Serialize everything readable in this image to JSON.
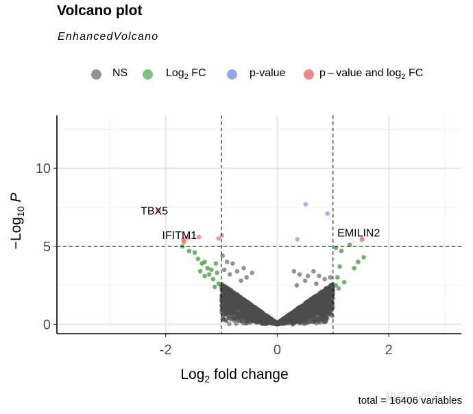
{
  "title": "Volcano plot",
  "subtitle": "EnhancedVolcano",
  "caption": "total = 16406 variables",
  "watermark": "知乎 @叶子",
  "legend": [
    {
      "key": "NS",
      "label": "NS",
      "color": "#808080"
    },
    {
      "key": "FC",
      "label_main": "Log",
      "label_sub": "2",
      "label_tail": " FC",
      "color": "#6ab46a"
    },
    {
      "key": "P",
      "label": "p-value",
      "color": "#7f9ae8"
    },
    {
      "key": "PFC",
      "label_main": "p – value and log",
      "label_sub": "2",
      "label_tail": " FC",
      "color": "#f07070"
    }
  ],
  "chart_data": {
    "type": "scatter",
    "title": "Volcano plot",
    "subtitle": "EnhancedVolcano",
    "xlabel": "Log2 fold change",
    "xlabel_main": "Log",
    "xlabel_sub": "2",
    "xlabel_tail": " fold change",
    "ylabel_prefix": "−Log",
    "ylabel_sub": "10",
    "ylabel_tail": " P",
    "xlim": [
      -3.95,
      3.3
    ],
    "ylim": [
      -0.6,
      13.4
    ],
    "xticks": [
      -2,
      0,
      2
    ],
    "xtick_labels": [
      "-2",
      "0",
      "2"
    ],
    "yticks": [
      0,
      5,
      10
    ],
    "ytick_labels": [
      "0",
      "5",
      "10"
    ],
    "grid": true,
    "legend_position": "top",
    "fc_cutoff": 1.0,
    "p_cutoff_neglog10": 5.0,
    "total_variables": 16406,
    "labeled_points": [
      {
        "label": "TBX5",
        "x": -2.13,
        "y": 7.3,
        "group": "PFC"
      },
      {
        "label": "IFITM1",
        "x": -1.67,
        "y": 5.3,
        "group": "PFC"
      },
      {
        "label": "EMILIN2",
        "x": 1.52,
        "y": 5.45,
        "group": "PFC"
      }
    ],
    "highlight_points": [
      {
        "x": -1.05,
        "y": 5.5,
        "group": "PFC"
      },
      {
        "x": -1.4,
        "y": 5.6,
        "group": "PFC"
      },
      {
        "x": -1.68,
        "y": 5.45,
        "group": "PFC"
      },
      {
        "x": -1.6,
        "y": 5.55,
        "group": "PFC"
      },
      {
        "x": 0.51,
        "y": 7.7,
        "group": "P"
      },
      {
        "x": 0.9,
        "y": 7.1,
        "group": "P"
      },
      {
        "x": 0.36,
        "y": 5.45,
        "group": "P"
      },
      {
        "x": -0.99,
        "y": 5.7,
        "group": "P"
      },
      {
        "x": -1.7,
        "y": 5.0,
        "group": "FC"
      },
      {
        "x": -1.58,
        "y": 4.7,
        "group": "FC"
      },
      {
        "x": -1.48,
        "y": 4.6,
        "group": "FC"
      },
      {
        "x": -1.42,
        "y": 4.2,
        "group": "FC"
      },
      {
        "x": -1.35,
        "y": 3.9,
        "group": "FC"
      },
      {
        "x": -1.3,
        "y": 4.0,
        "group": "FC"
      },
      {
        "x": -1.25,
        "y": 3.6,
        "group": "FC"
      },
      {
        "x": -1.18,
        "y": 3.5,
        "group": "FC"
      },
      {
        "x": -1.1,
        "y": 3.9,
        "group": "FC"
      },
      {
        "x": -1.08,
        "y": 3.3,
        "group": "FC"
      },
      {
        "x": -1.22,
        "y": 3.2,
        "group": "FC"
      },
      {
        "x": -1.15,
        "y": 2.9,
        "group": "FC"
      },
      {
        "x": -1.05,
        "y": 2.6,
        "group": "FC"
      },
      {
        "x": -1.12,
        "y": 2.4,
        "group": "FC"
      },
      {
        "x": -1.3,
        "y": 3.1,
        "group": "FC"
      },
      {
        "x": -1.38,
        "y": 3.4,
        "group": "FC"
      },
      {
        "x": 1.05,
        "y": 4.9,
        "group": "FC"
      },
      {
        "x": 1.15,
        "y": 4.7,
        "group": "FC"
      },
      {
        "x": 1.3,
        "y": 5.1,
        "group": "FC"
      },
      {
        "x": 1.45,
        "y": 4.0,
        "group": "FC"
      },
      {
        "x": 1.55,
        "y": 4.3,
        "group": "FC"
      },
      {
        "x": 1.38,
        "y": 3.6,
        "group": "FC"
      },
      {
        "x": 1.12,
        "y": 3.7,
        "group": "FC"
      },
      {
        "x": 1.08,
        "y": 3.0,
        "group": "FC"
      },
      {
        "x": 1.2,
        "y": 2.7,
        "group": "FC"
      },
      {
        "x": 1.05,
        "y": 2.5,
        "group": "FC"
      },
      {
        "x": 1.1,
        "y": 2.3,
        "group": "FC"
      }
    ],
    "ns_scatter_upper_points": [
      {
        "x": -0.98,
        "y": 4.4
      },
      {
        "x": -0.9,
        "y": 4.0
      },
      {
        "x": -0.8,
        "y": 3.9
      },
      {
        "x": -0.72,
        "y": 3.4
      },
      {
        "x": -0.6,
        "y": 3.6
      },
      {
        "x": -0.55,
        "y": 3.0
      },
      {
        "x": -0.45,
        "y": 3.3
      },
      {
        "x": -0.85,
        "y": 3.2
      },
      {
        "x": -0.65,
        "y": 2.8
      },
      {
        "x": -0.95,
        "y": 3.5
      },
      {
        "x": 0.3,
        "y": 3.4
      },
      {
        "x": 0.4,
        "y": 3.2
      },
      {
        "x": 0.55,
        "y": 3.1
      },
      {
        "x": 0.65,
        "y": 3.4
      },
      {
        "x": 0.75,
        "y": 3.1
      },
      {
        "x": 0.85,
        "y": 2.9
      },
      {
        "x": 0.95,
        "y": 3.0
      },
      {
        "x": 0.5,
        "y": 2.8
      },
      {
        "x": 0.7,
        "y": 2.6
      },
      {
        "x": 0.35,
        "y": 2.5
      }
    ]
  }
}
